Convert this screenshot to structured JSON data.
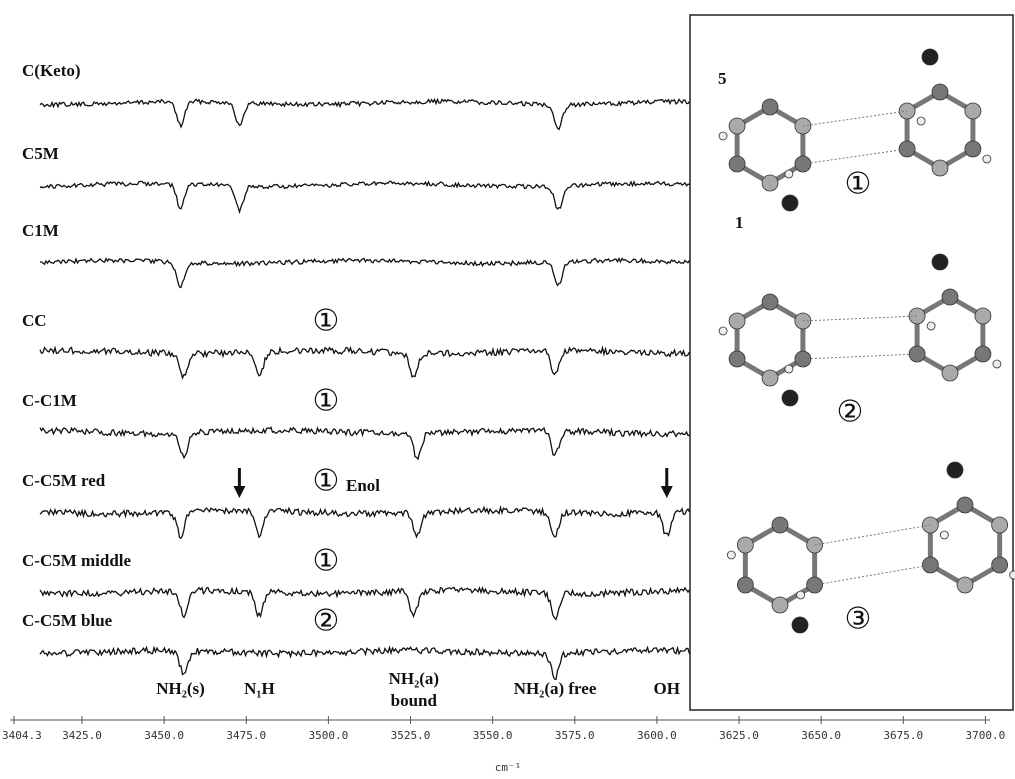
{
  "chart_data": {
    "type": "spectra",
    "x_label": "cm⁻¹",
    "xlim": [
      3404.3,
      3702
    ],
    "xticks": [
      {
        "value": 3404.3,
        "label": "3404.3"
      },
      {
        "value": 3425,
        "label": "3425.0"
      },
      {
        "value": 3450,
        "label": "3450.0"
      },
      {
        "value": 3475,
        "label": "3475.0"
      },
      {
        "value": 3500,
        "label": "3500.0"
      },
      {
        "value": 3525,
        "label": "3525.0"
      },
      {
        "value": 3550,
        "label": "3550.0"
      },
      {
        "value": 3575,
        "label": "3575.0"
      },
      {
        "value": 3600,
        "label": "3600.0"
      },
      {
        "value": 3625,
        "label": "3625.0"
      },
      {
        "value": 3650,
        "label": "3650.0"
      },
      {
        "value": 3675,
        "label": "3675.0"
      },
      {
        "value": 3700,
        "label": "3700.0"
      }
    ],
    "series": [
      {
        "name": "C(Keto)",
        "dips": [
          3455,
          3473,
          3570
        ]
      },
      {
        "name": "C5M",
        "dips": [
          3455,
          3473,
          3570
        ]
      },
      {
        "name": "C1M",
        "dips": [
          3455,
          3570
        ]
      },
      {
        "name": "CC",
        "dips": [
          3456,
          3479,
          3526,
          3569
        ],
        "marker": "①"
      },
      {
        "name": "C-C1M",
        "dips": [
          3456,
          3527,
          3569
        ],
        "marker": "①"
      },
      {
        "name": "C-C5M red",
        "dips": [
          3455,
          3479,
          3527,
          3569,
          3603
        ],
        "marker": "①",
        "note": "Enol"
      },
      {
        "name": "C-C5M middle",
        "dips": [
          3456,
          3479,
          3526,
          3569
        ],
        "marker": "①"
      },
      {
        "name": "C-C5M blue",
        "dips": [
          3456,
          3569
        ],
        "marker": "②"
      }
    ],
    "band_labels": [
      {
        "text": "NH₂(s)",
        "x": 3455
      },
      {
        "text": "N₁H",
        "x": 3479
      },
      {
        "text": "NH₂(a) bound",
        "x": 3526
      },
      {
        "text": "NH₂(a) free",
        "x": 3569
      },
      {
        "text": "OH",
        "x": 3603
      }
    ],
    "inset": {
      "atom_labels": [
        "5",
        "1"
      ],
      "structures": [
        "①",
        "②",
        "③"
      ]
    }
  }
}
